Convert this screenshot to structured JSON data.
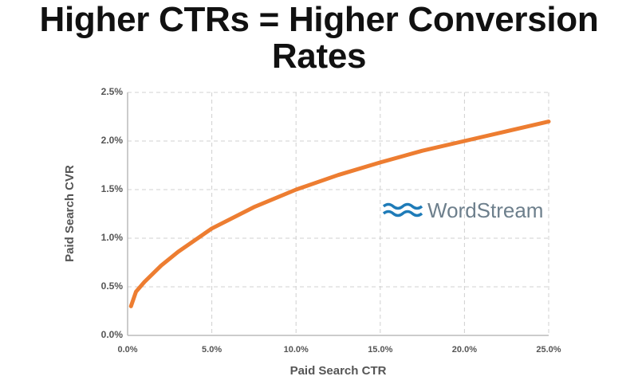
{
  "chart_data": {
    "type": "line",
    "title": "Higher CTRs = Higher Conversion Rates",
    "x_label": "Paid Search CTR",
    "y_label": "Paid Search CVR",
    "watermark": "WordStream",
    "x": [
      0.2,
      0.5,
      1,
      2,
      3,
      4,
      5,
      7.5,
      10,
      12.5,
      15,
      17.5,
      20,
      22.5,
      25
    ],
    "series": [
      {
        "name": "CVR",
        "color": "#ed7d31",
        "values": [
          0.3,
          0.45,
          0.55,
          0.72,
          0.86,
          0.98,
          1.1,
          1.32,
          1.5,
          1.65,
          1.78,
          1.9,
          2.0,
          2.1,
          2.2
        ]
      }
    ],
    "xlim": [
      0,
      25
    ],
    "ylim": [
      0,
      2.5
    ],
    "xticks": [
      {
        "value": 0,
        "label": "0.0%"
      },
      {
        "value": 5,
        "label": "5.0%"
      },
      {
        "value": 10,
        "label": "10.0%"
      },
      {
        "value": 15,
        "label": "15.0%"
      },
      {
        "value": 20,
        "label": "20.0%"
      },
      {
        "value": 25,
        "label": "25.0%"
      }
    ],
    "yticks": [
      {
        "value": 0,
        "label": "0.0%"
      },
      {
        "value": 0.5,
        "label": "0.5%"
      },
      {
        "value": 1,
        "label": "1.0%"
      },
      {
        "value": 1.5,
        "label": "1.5%"
      },
      {
        "value": 2,
        "label": "2.0%"
      },
      {
        "value": 2.5,
        "label": "2.5%"
      }
    ],
    "grid": true
  }
}
